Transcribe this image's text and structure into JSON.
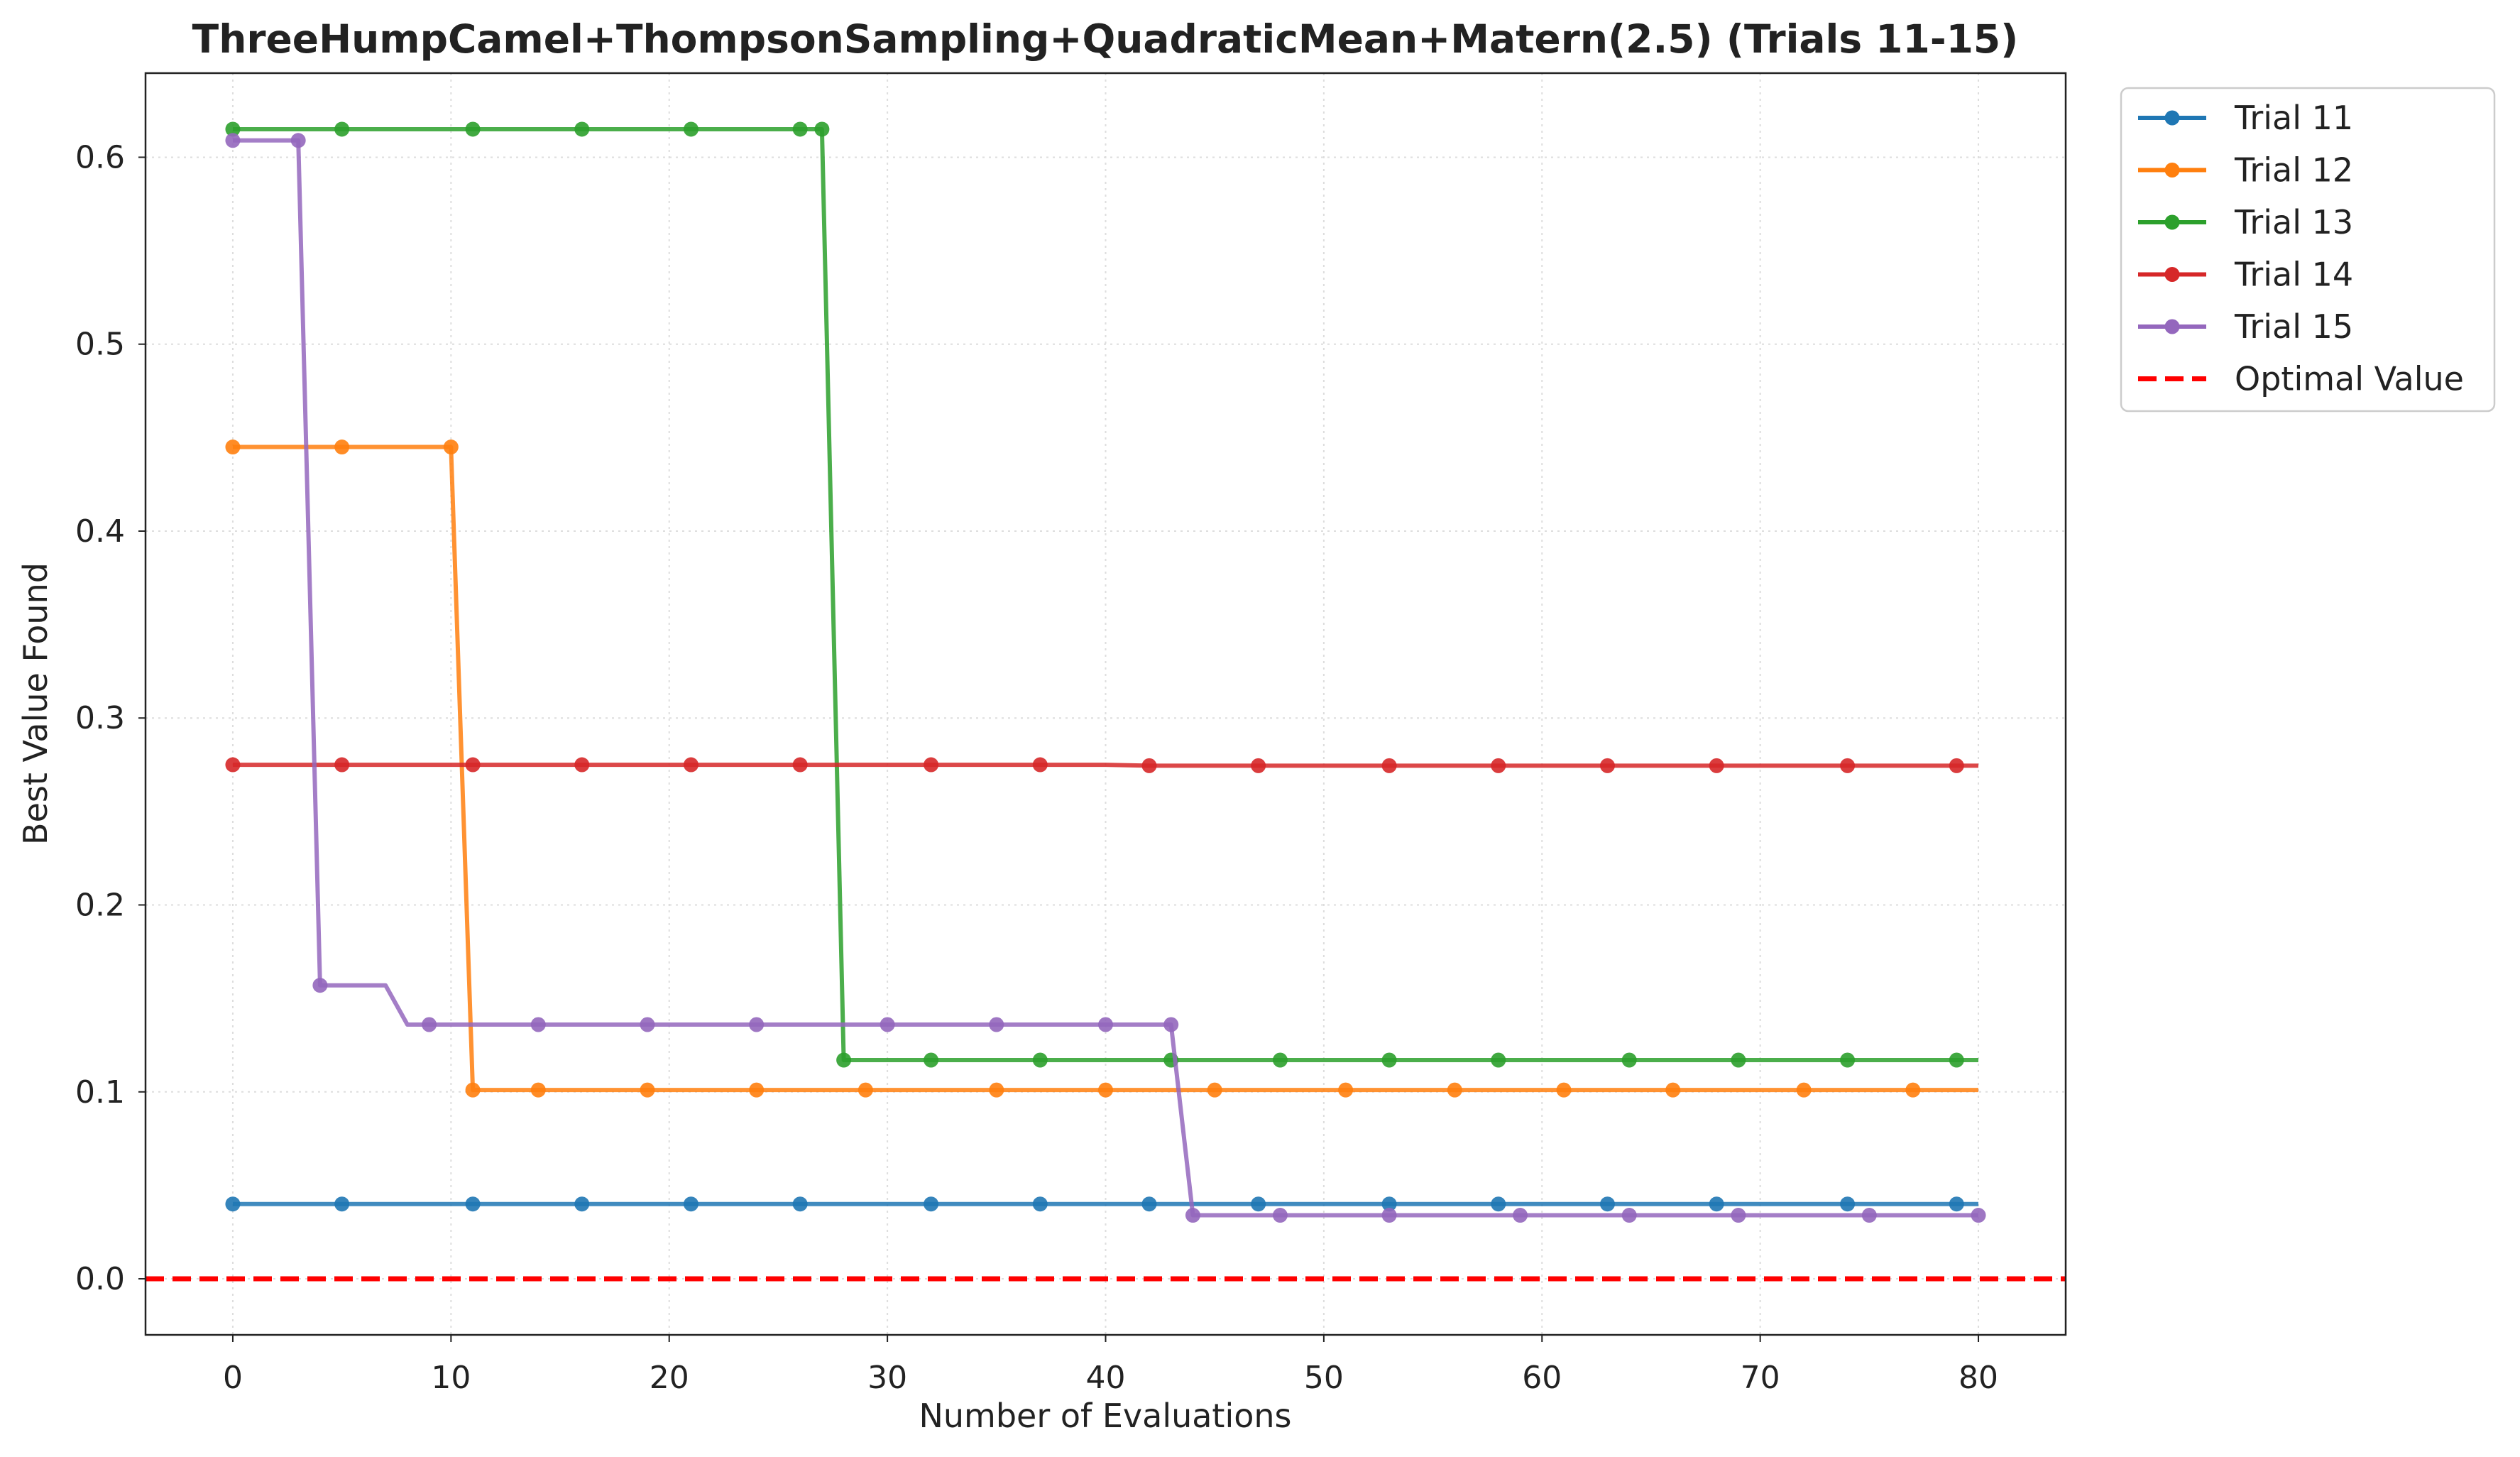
{
  "chart_data": {
    "type": "line",
    "title": "ThreeHumpCamel+ThompsonSampling+QuadraticMean+Matern(2.5) (Trials 11-15)",
    "xlabel": "Number of Evaluations",
    "ylabel": "Best Value Found",
    "xlim": [
      -4,
      84
    ],
    "ylim": [
      -0.03,
      0.645
    ],
    "xticks": [
      0,
      10,
      20,
      30,
      40,
      50,
      60,
      70,
      80
    ],
    "yticks": [
      0.0,
      0.1,
      0.2,
      0.3,
      0.4,
      0.5,
      0.6
    ],
    "ytick_labels": [
      "0.0",
      "0.1",
      "0.2",
      "0.3",
      "0.4",
      "0.5",
      "0.6"
    ],
    "grid": true,
    "legend_position": "outside-top-right",
    "series": [
      {
        "name": "Trial 11",
        "color": "#1f77b4",
        "points": [
          [
            0,
            0.04
          ],
          [
            80,
            0.04
          ]
        ],
        "markers_x": [
          0,
          5,
          11,
          16,
          21,
          26,
          32,
          37,
          42,
          47,
          53,
          58,
          63,
          68,
          74,
          79
        ]
      },
      {
        "name": "Trial 12",
        "color": "#ff7f0e",
        "points": [
          [
            0,
            0.445
          ],
          [
            10,
            0.445
          ],
          [
            11,
            0.101
          ],
          [
            80,
            0.101
          ]
        ],
        "markers_x": [
          0,
          5,
          10,
          11,
          14,
          19,
          24,
          29,
          35,
          40,
          45,
          51,
          56,
          61,
          66,
          72,
          77
        ]
      },
      {
        "name": "Trial 13",
        "color": "#2ca02c",
        "points": [
          [
            0,
            0.615
          ],
          [
            27,
            0.615
          ],
          [
            28,
            0.117
          ],
          [
            80,
            0.117
          ]
        ],
        "markers_x": [
          0,
          5,
          11,
          16,
          21,
          26,
          27,
          28,
          32,
          37,
          43,
          48,
          53,
          58,
          64,
          69,
          74,
          79
        ]
      },
      {
        "name": "Trial 14",
        "color": "#d62728",
        "points": [
          [
            0,
            0.275
          ],
          [
            40,
            0.275
          ],
          [
            42,
            0.2745
          ],
          [
            80,
            0.2745
          ]
        ],
        "markers_x": [
          0,
          5,
          11,
          16,
          21,
          26,
          32,
          37,
          42,
          47,
          53,
          58,
          63,
          68,
          74,
          79
        ]
      },
      {
        "name": "Trial 15",
        "color": "#9467bd",
        "points": [
          [
            0,
            0.609
          ],
          [
            3,
            0.609
          ],
          [
            4,
            0.157
          ],
          [
            7,
            0.157
          ],
          [
            8,
            0.136
          ],
          [
            43,
            0.136
          ],
          [
            44,
            0.034
          ],
          [
            80,
            0.034
          ]
        ],
        "markers_x": [
          0,
          3,
          4,
          9,
          14,
          19,
          24,
          30,
          35,
          40,
          43,
          44,
          48,
          53,
          59,
          64,
          69,
          75,
          80
        ]
      }
    ],
    "reference_line": {
      "name": "Optimal Value",
      "y": 0.0,
      "color": "#ff0000",
      "style": "dashed"
    }
  }
}
